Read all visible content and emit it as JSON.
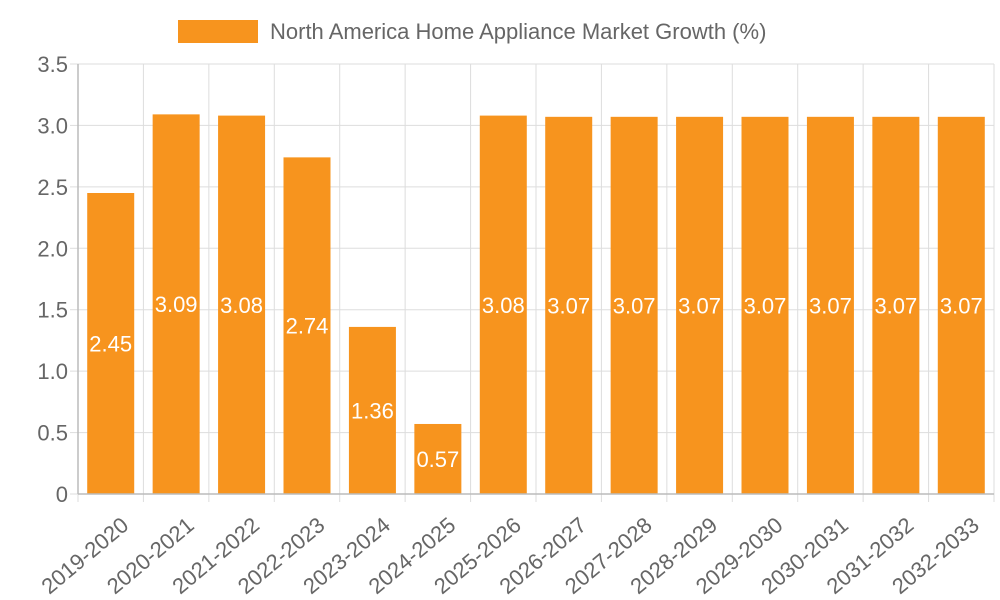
{
  "colors": {
    "bar": "#F7941E",
    "grid": "#dddddd",
    "axis": "#bbbbbb",
    "text": "#666666",
    "data_label": "#ffffff"
  },
  "chart_data": {
    "type": "bar",
    "legend": {
      "label": "North America Home Appliance Market Growth (%)",
      "position": "top-center"
    },
    "categories": [
      "2019-2020",
      "2020-2021",
      "2021-2022",
      "2022-2023",
      "2023-2024",
      "2024-2025",
      "2025-2026",
      "2026-2027",
      "2027-2028",
      "2028-2029",
      "2029-2030",
      "2030-2031",
      "2031-2032",
      "2032-2033"
    ],
    "series": [
      {
        "name": "North America Home Appliance Market Growth (%)",
        "values": [
          2.45,
          3.09,
          3.08,
          2.74,
          1.36,
          0.57,
          3.08,
          3.07,
          3.07,
          3.07,
          3.07,
          3.07,
          3.07,
          3.07
        ],
        "labels": [
          "2.45",
          "3.09",
          "3.08",
          "2.74",
          "1.36",
          "0.57",
          "3.08",
          "3.07",
          "3.07",
          "3.07",
          "3.07",
          "3.07",
          "3.07",
          "3.07"
        ]
      }
    ],
    "ylim": [
      0,
      3.5
    ],
    "y_ticks": [
      "0",
      "0.5",
      "1.0",
      "1.5",
      "2.0",
      "2.5",
      "3.0",
      "3.5"
    ],
    "grid": true,
    "xlabel": "",
    "ylabel": ""
  }
}
